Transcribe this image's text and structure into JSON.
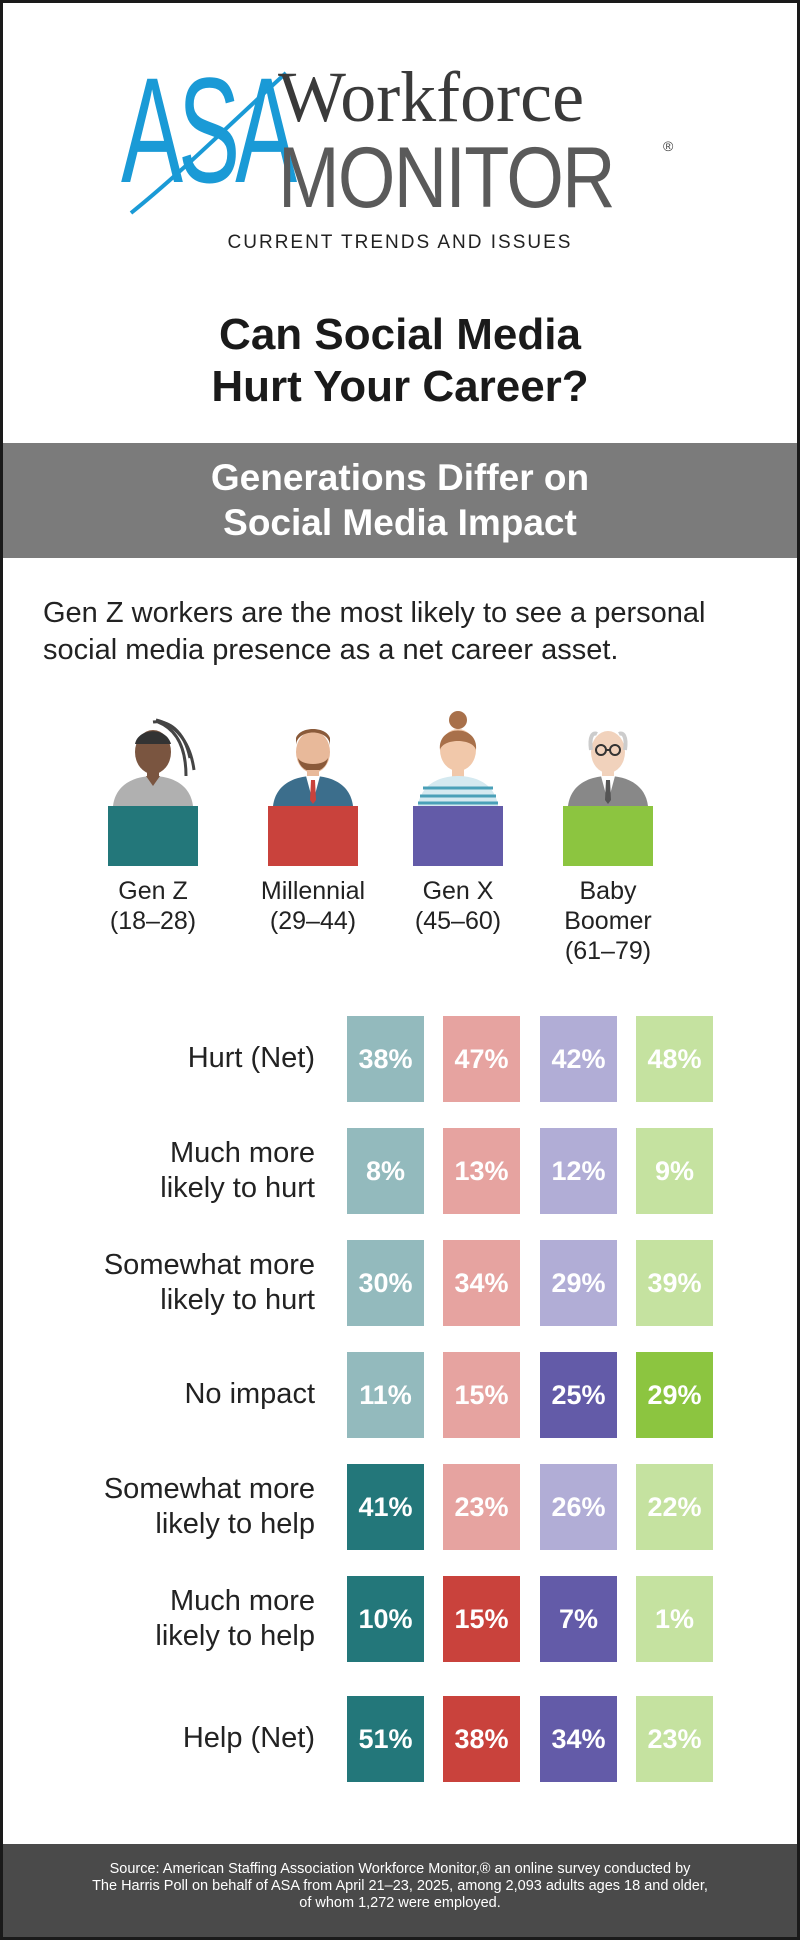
{
  "logo": {
    "asa": "ASA",
    "workforce": "Workforce",
    "monitor": "MONITOR",
    "registered": "®",
    "tagline": "CURRENT TRENDS AND ISSUES"
  },
  "title": {
    "line1": "Can Social Media",
    "line2": "Hurt Your Career?"
  },
  "banner": {
    "line1": "Generations Differ on",
    "line2": "Social Media Impact"
  },
  "intro": {
    "line1": "Gen Z workers are the most likely to see a personal",
    "line2": "social media presence as a net career asset."
  },
  "generations": [
    {
      "name": "Gen Z",
      "ages": "(18–28)",
      "icon": "person-dreadlocks-icon",
      "color": "#23777a",
      "light": "#93babd"
    },
    {
      "name": "Millennial",
      "ages": "(29–44)",
      "icon": "person-beard-suit-icon",
      "color": "#c9423c",
      "light": "#e6a3a0"
    },
    {
      "name": "Gen X",
      "ages": "(45–60)",
      "icon": "person-bun-icon",
      "color": "#635ba8",
      "light": "#b1add6"
    },
    {
      "name": "Baby",
      "name2": "Boomer",
      "ages": "(61–79)",
      "icon": "person-glasses-suit-icon",
      "color": "#8cc540",
      "light": "#c5e2a0"
    }
  ],
  "chart_data": {
    "type": "table",
    "title": "Generations Differ on Social Media Impact",
    "columns": [
      "Gen Z (18–28)",
      "Millennial (29–44)",
      "Gen X (45–60)",
      "Baby Boomer (61–79)"
    ],
    "rows": [
      {
        "label1": "Hurt (Net)",
        "label2": "",
        "values": [
          "38%",
          "47%",
          "42%",
          "48%"
        ],
        "strong": [
          false,
          false,
          false,
          false
        ]
      },
      {
        "label1": "Much more",
        "label2": "likely to hurt",
        "values": [
          "8%",
          "13%",
          "12%",
          "9%"
        ],
        "strong": [
          false,
          false,
          false,
          false
        ]
      },
      {
        "label1": "Somewhat more",
        "label2": "likely to hurt",
        "values": [
          "30%",
          "34%",
          "29%",
          "39%"
        ],
        "strong": [
          false,
          false,
          false,
          false
        ]
      },
      {
        "label1": "No impact",
        "label2": "",
        "values": [
          "11%",
          "15%",
          "25%",
          "29%"
        ],
        "strong": [
          false,
          false,
          true,
          true
        ]
      },
      {
        "label1": "Somewhat more",
        "label2": "likely to help",
        "values": [
          "41%",
          "23%",
          "26%",
          "22%"
        ],
        "strong": [
          true,
          false,
          false,
          false
        ]
      },
      {
        "label1": "Much more",
        "label2": "likely to help",
        "values": [
          "10%",
          "15%",
          "7%",
          "1%"
        ],
        "strong": [
          true,
          true,
          true,
          false
        ]
      },
      {
        "label1": "Help (Net)",
        "label2": "",
        "values": [
          "51%",
          "38%",
          "34%",
          "23%"
        ],
        "strong": [
          true,
          true,
          true,
          false
        ]
      }
    ]
  },
  "footer": {
    "line1": "Source: American Staffing Association Workforce Monitor,® an online survey conducted by",
    "line2": "The Harris Poll on behalf of ASA from April 21–23, 2025, among 2,093 adults ages 18 and older,",
    "line3": "of whom 1,272 were employed."
  }
}
